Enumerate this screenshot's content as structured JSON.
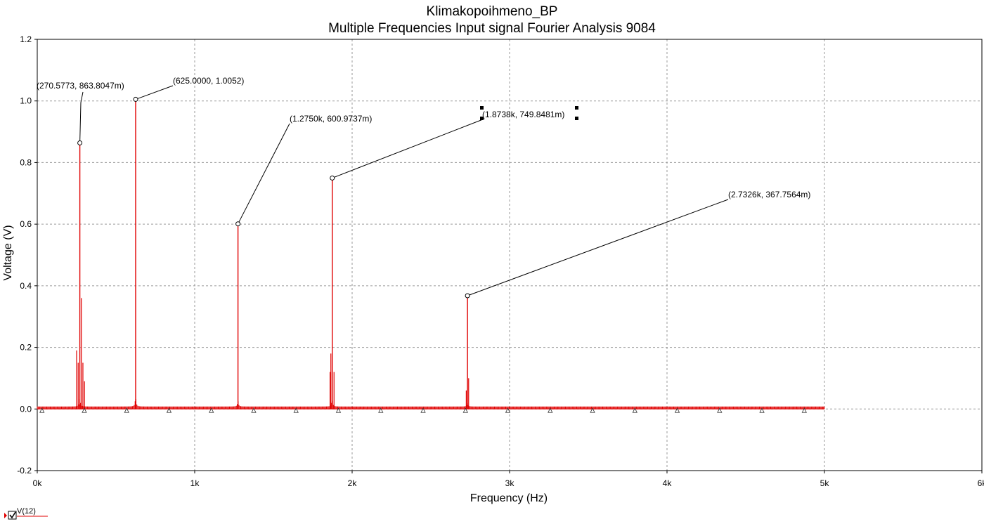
{
  "chart_data": {
    "type": "line",
    "title": "Klimakopoihmeno_BP",
    "subtitle": "Multiple Frequencies Input signal Fourier Analysis 9084",
    "xlabel": "Frequency (Hz)",
    "ylabel": "Voltage (V)",
    "xlim": [
      0,
      6000
    ],
    "ylim": [
      -0.2,
      1.2
    ],
    "x_ticks": [
      0,
      1000,
      2000,
      3000,
      4000,
      5000,
      6000
    ],
    "x_tick_labels": [
      "0k",
      "1k",
      "2k",
      "3k",
      "4k",
      "5k",
      "6k"
    ],
    "y_ticks": [
      -0.2,
      0.0,
      0.2,
      0.4,
      0.6,
      0.8,
      1.0,
      1.2
    ],
    "y_tick_labels": [
      "-0.2",
      "0.0",
      "0.2",
      "0.4",
      "0.6",
      "0.8",
      "1.0",
      "1.2"
    ],
    "grid": true,
    "series_color": "#e00000",
    "series": [
      {
        "name": "V(12)",
        "peaks": [
          {
            "x": 270.5773,
            "y": 0.8638
          },
          {
            "x": 625.0,
            "y": 1.0052
          },
          {
            "x": 1275.0,
            "y": 0.601
          },
          {
            "x": 1873.8,
            "y": 0.7498
          },
          {
            "x": 2732.6,
            "y": 0.3678
          }
        ],
        "side_lines": [
          {
            "x": 250,
            "y": 0.19
          },
          {
            "x": 260,
            "y": 0.15
          },
          {
            "x": 280,
            "y": 0.36
          },
          {
            "x": 290,
            "y": 0.15
          },
          {
            "x": 300,
            "y": 0.09
          },
          {
            "x": 1860,
            "y": 0.12
          },
          {
            "x": 1865,
            "y": 0.18
          },
          {
            "x": 1885,
            "y": 0.12
          },
          {
            "x": 2725,
            "y": 0.06
          },
          {
            "x": 2740,
            "y": 0.1
          }
        ],
        "end_x": 5000
      }
    ],
    "annotations": [
      {
        "text": "(270.5773, 863.8047m)",
        "x": 270.5773,
        "y": 0.8638
      },
      {
        "text": "(625.0000, 1.0052)",
        "x": 625.0,
        "y": 1.0052
      },
      {
        "text": "(1.2750k, 600.9737m)",
        "x": 1275.0,
        "y": 0.601
      },
      {
        "text": "(1.8738k, 749.8481m)",
        "x": 1873.8,
        "y": 0.7498
      },
      {
        "text": "(2.7326k, 367.7564m)",
        "x": 2732.6,
        "y": 0.3678
      }
    ],
    "legend": {
      "position": "bottom-left",
      "entries": [
        "V(12)"
      ]
    }
  }
}
